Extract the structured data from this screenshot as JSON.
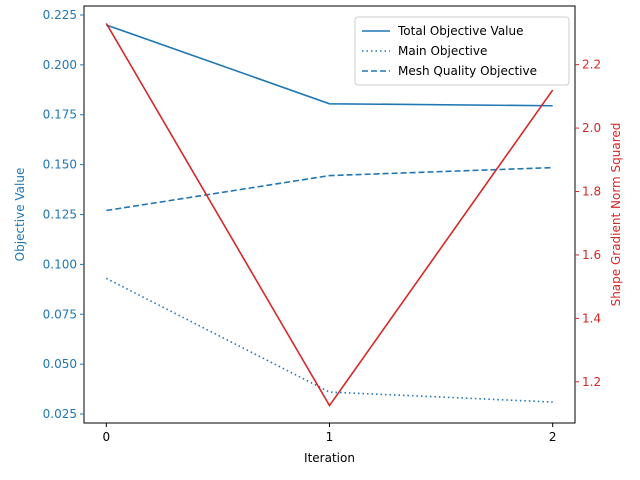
{
  "chart_data": {
    "type": "line",
    "title": "",
    "xlabel": "Iteration",
    "ylabel_left": "Objective Value",
    "ylabel_right": "Shape Gradient Norm Squared",
    "x": [
      0,
      1,
      2
    ],
    "x_ticks": [
      "0",
      "1",
      "2"
    ],
    "xlim": [
      -0.1,
      2.1
    ],
    "ylim_left": [
      0.0205,
      0.2295
    ],
    "ylim_right": [
      1.07,
      2.385
    ],
    "yticks_left": [
      "0.025",
      "0.050",
      "0.075",
      "0.100",
      "0.125",
      "0.150",
      "0.175",
      "0.200",
      "0.225"
    ],
    "yticks_right": [
      "1.2",
      "1.4",
      "1.6",
      "1.8",
      "2.0",
      "2.2"
    ],
    "left_axis_color": "#1f77b4",
    "right_axis_color": "#d62728",
    "legend_position": "top-right",
    "series": [
      {
        "name": "Total Objective Value",
        "axis": "left",
        "style": "solid",
        "color": "#1f77b4",
        "values": [
          0.22,
          0.1805,
          0.1795
        ]
      },
      {
        "name": "Main Objective",
        "axis": "left",
        "style": "dotted",
        "color": "#1f77b4",
        "values": [
          0.093,
          0.036,
          0.031
        ]
      },
      {
        "name": "Mesh Quality Objective",
        "axis": "left",
        "style": "dashed",
        "color": "#1f77b4",
        "values": [
          0.127,
          0.1445,
          0.1485
        ]
      },
      {
        "axis": "right",
        "style": "solid",
        "color": "#d62728",
        "values": [
          2.33,
          1.125,
          2.12
        ]
      }
    ]
  }
}
